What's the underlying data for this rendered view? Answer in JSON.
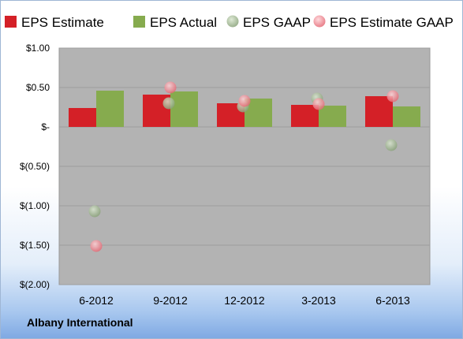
{
  "chart_data": {
    "type": "bar",
    "title": "",
    "categories": [
      "6-2012",
      "9-2012",
      "12-2012",
      "3-2013",
      "6-2013"
    ],
    "series": [
      {
        "name": "EPS Estimate",
        "kind": "bar",
        "color": "#d42027",
        "values": [
          0.24,
          0.41,
          0.3,
          0.28,
          0.39
        ]
      },
      {
        "name": "EPS Actual",
        "kind": "bar",
        "color": "#86ab4e",
        "values": [
          0.46,
          0.45,
          0.36,
          0.27,
          0.26
        ]
      },
      {
        "name": "EPS GAAP",
        "kind": "scatter",
        "color": "#a3b896",
        "values": [
          -1.07,
          0.3,
          0.26,
          0.36,
          -0.23
        ]
      },
      {
        "name": "EPS Estimate GAAP",
        "kind": "scatter",
        "color": "#f08a93",
        "values": [
          -1.51,
          0.5,
          0.33,
          0.29,
          0.39
        ]
      }
    ],
    "yticks": [
      1.0,
      0.5,
      0,
      -0.5,
      -1.0,
      -1.5,
      -2.0
    ],
    "ytick_labels": [
      "$1.00",
      "$0.50",
      "$-",
      "$(0.50)",
      "$(1.00)",
      "$(1.50)",
      "$(2.00)"
    ],
    "ylim": [
      -2.0,
      1.0
    ],
    "grid": true,
    "legend": "top",
    "company": "Albany International"
  }
}
